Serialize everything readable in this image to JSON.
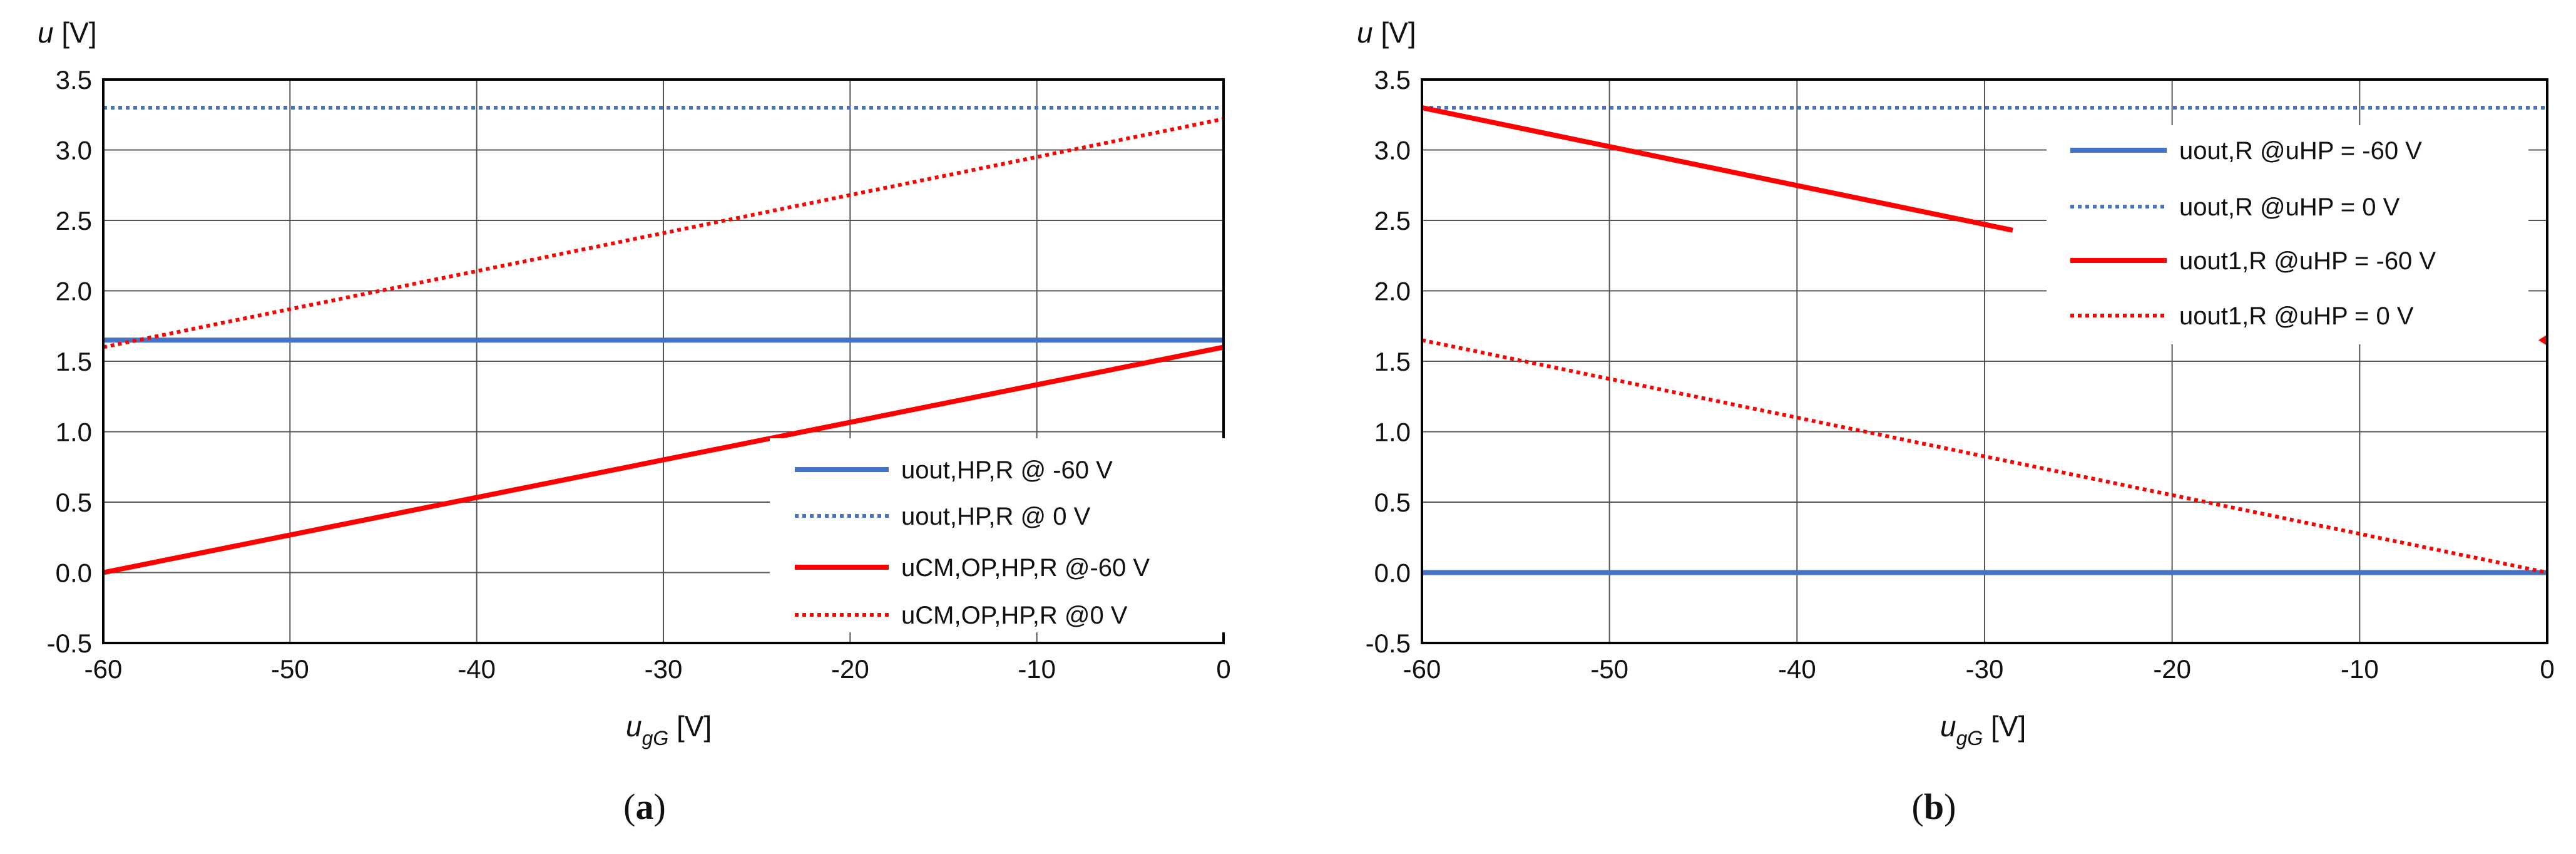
{
  "chart_data": [
    {
      "type": "line",
      "caption_open": "(",
      "caption_letter": "a",
      "caption_close": ")",
      "ylabel_symbol": "u",
      "ylabel_unit": " [V]",
      "xlabel_symbol": "u",
      "xlabel_sub": "gG",
      "xlabel_unit": " [V]",
      "xlim": [
        -60,
        0
      ],
      "ylim": [
        -0.5,
        3.5
      ],
      "xticks": [
        -60,
        -50,
        -40,
        -30,
        -20,
        -10,
        0
      ],
      "yticks": [
        -0.5,
        0.0,
        0.5,
        1.0,
        1.5,
        2.0,
        2.5,
        3.0,
        3.5
      ],
      "xtick_labels": [
        "-60",
        "-50",
        "-40",
        "-30",
        "-20",
        "-10",
        "0"
      ],
      "ytick_labels": [
        "-0.5",
        "0.0",
        "0.5",
        "1.0",
        "1.5",
        "2.0",
        "2.5",
        "3.0",
        "3.5"
      ],
      "grid": true,
      "legend_position": "bottom-right",
      "series": [
        {
          "name": "uout,HP,R @ -60 V",
          "color": "#4472c4",
          "style": "solid",
          "x": [
            -60,
            0
          ],
          "y": [
            1.65,
            1.65
          ]
        },
        {
          "name": "uout,HP,R @ 0 V",
          "color": "#4472c4",
          "style": "dotted",
          "x": [
            -60,
            0
          ],
          "y": [
            3.3,
            3.3
          ]
        },
        {
          "name": "uCM,OP,HP,R @-60 V",
          "color": "#ff0000",
          "style": "solid",
          "x": [
            -60,
            0
          ],
          "y": [
            0.0,
            1.6
          ]
        },
        {
          "name": "uCM,OP,HP,R @0 V",
          "color": "#ff0000",
          "style": "dotted",
          "x": [
            -60,
            0
          ],
          "y": [
            1.6,
            3.22
          ]
        }
      ]
    },
    {
      "type": "line",
      "caption_open": "(",
      "caption_letter": "b",
      "caption_close": ")",
      "ylabel_symbol": "u",
      "ylabel_unit": " [V]",
      "xlabel_symbol": "u",
      "xlabel_sub": "gG",
      "xlabel_unit": " [V]",
      "xlim": [
        -60,
        0
      ],
      "ylim": [
        -0.5,
        3.5
      ],
      "xticks": [
        -60,
        -50,
        -40,
        -30,
        -20,
        -10,
        0
      ],
      "yticks": [
        -0.5,
        0.0,
        0.5,
        1.0,
        1.5,
        2.0,
        2.5,
        3.0,
        3.5
      ],
      "xtick_labels": [
        "-60",
        "-50",
        "-40",
        "-30",
        "-20",
        "-10",
        "0"
      ],
      "ytick_labels": [
        "-0.5",
        "0.0",
        "0.5",
        "1.0",
        "1.5",
        "2.0",
        "2.5",
        "3.0",
        "3.5"
      ],
      "grid": true,
      "legend_position": "top-right",
      "series": [
        {
          "name": "uout,R @uHP = -60 V",
          "color": "#4472c4",
          "style": "solid",
          "x": [
            -60,
            0
          ],
          "y": [
            0.0,
            0.0
          ]
        },
        {
          "name": "uout,R @uHP = 0 V",
          "color": "#4472c4",
          "style": "dotted",
          "x": [
            -60,
            0
          ],
          "y": [
            3.3,
            3.3
          ]
        },
        {
          "name": "uout1,R @uHP = -60 V",
          "color": "#ff0000",
          "style": "solid",
          "x": [
            -60,
            -28.5
          ],
          "y": [
            3.3,
            2.43
          ]
        },
        {
          "name": "uout1,R @uHP = 0 V",
          "color": "#ff0000",
          "style": "dotted",
          "x": [
            -60,
            0
          ],
          "y": [
            1.65,
            0.0
          ]
        }
      ],
      "marker_color": "#ff0000",
      "marker_x": 0,
      "marker_y": 1.65
    }
  ]
}
